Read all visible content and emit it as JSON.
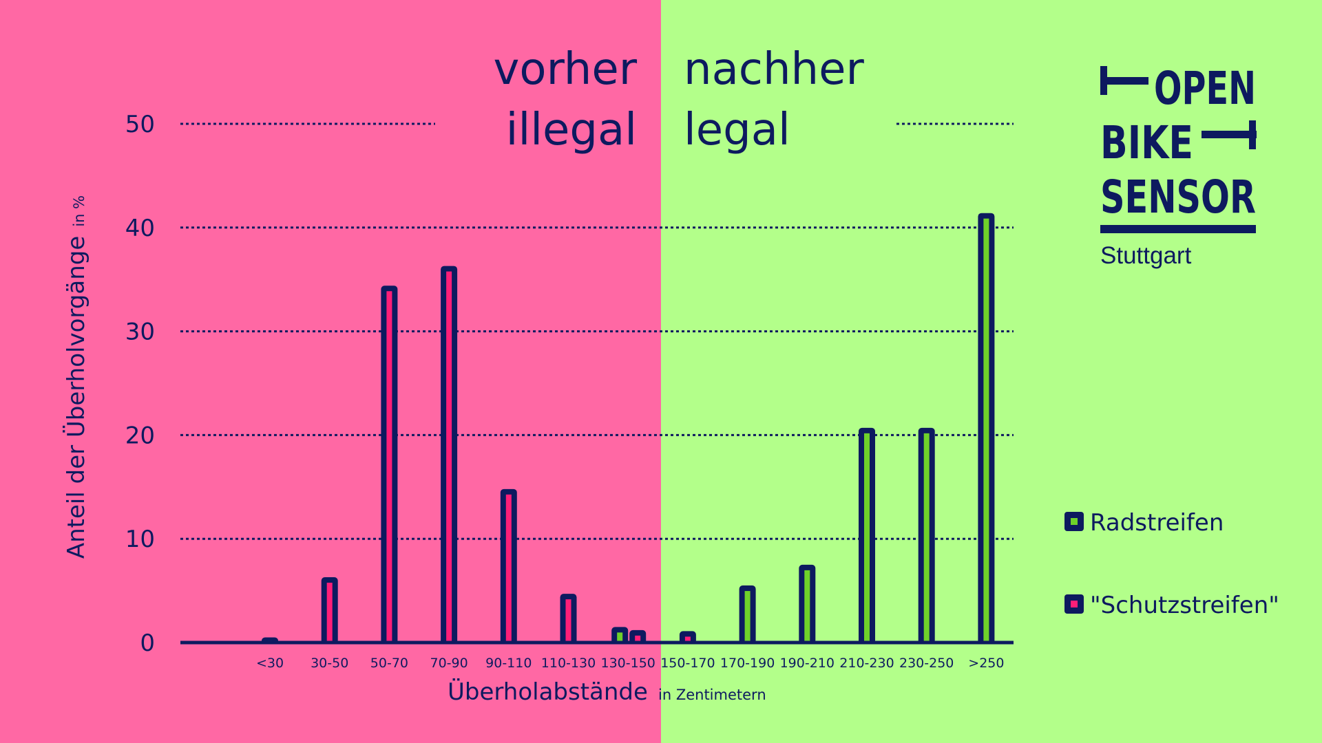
{
  "colors": {
    "illegal_bg": "#ff68a4",
    "legal_bg": "#b3ff8a",
    "navy": "#0d1a5f",
    "radstreifen": "#6fd12a",
    "schutzstreifen": "#ff1e78"
  },
  "header": {
    "left_line1": "vorher",
    "left_line2": "illegal",
    "right_line1": "nachher",
    "right_line2": "legal"
  },
  "logo": {
    "line1": "OPEN",
    "line2": "BIKE",
    "line3": "SENSOR",
    "city": "Stuttgart"
  },
  "chart_data": {
    "type": "bar",
    "xlabel": "Überholabstände",
    "xlabel_unit": "in Zentimetern",
    "ylabel": "Anteil der Überholvorgänge",
    "ylabel_unit": "in %",
    "ylim": [
      0,
      50
    ],
    "yticks": [
      0,
      10,
      20,
      30,
      40,
      50
    ],
    "grid": true,
    "legend_position": "right",
    "categories": [
      "<30",
      "30-50",
      "50-70",
      "70-90",
      "90-110",
      "110-130",
      "130-150",
      "150-170",
      "170-190",
      "190-210",
      "210-230",
      "230-250",
      ">250"
    ],
    "series": [
      {
        "name": "Radstreifen",
        "color_key": "radstreifen",
        "values": [
          null,
          null,
          null,
          null,
          null,
          null,
          1.5,
          null,
          5.5,
          7.5,
          20.7,
          20.7,
          41.4
        ]
      },
      {
        "name": "\"Schutzstreifen\"",
        "color_key": "schutzstreifen",
        "values": [
          0.5,
          6.3,
          34.4,
          36.3,
          14.8,
          4.7,
          1.2,
          1.1,
          null,
          null,
          null,
          null,
          null
        ]
      }
    ]
  }
}
